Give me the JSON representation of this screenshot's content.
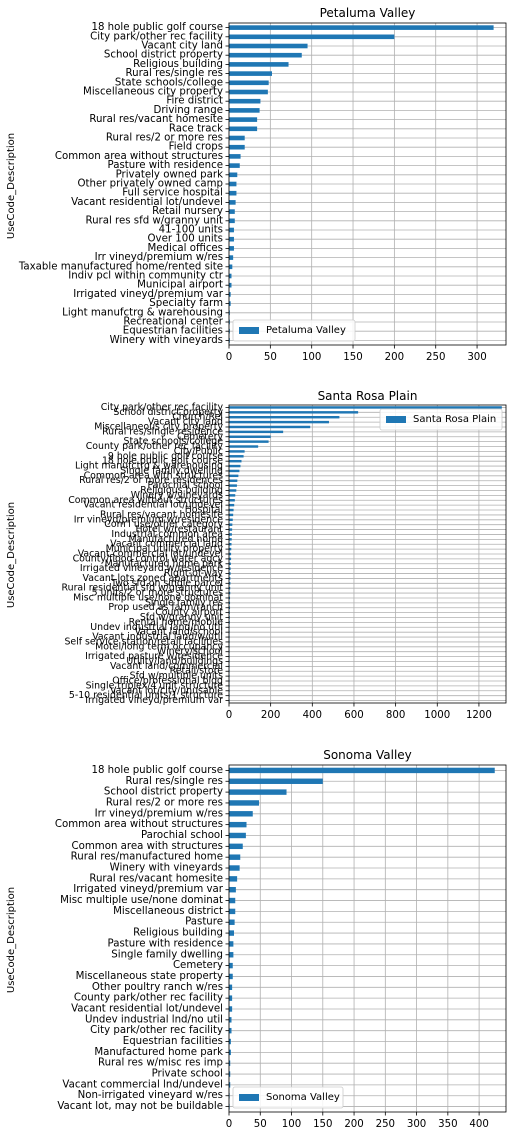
{
  "chart_data": [
    {
      "type": "bar",
      "orientation": "horizontal",
      "title": "Petaluma Valley",
      "ylabel": "UseCode_Description",
      "xlabel": "",
      "xlim": [
        0,
        335
      ],
      "xticks": [
        0,
        50,
        100,
        150,
        200,
        250,
        300
      ],
      "grid": true,
      "legend": "lower-left",
      "series": [
        {
          "name": "Petaluma Valley",
          "color": "#1f77b4"
        }
      ],
      "categories": [
        "18 hole public golf course",
        "City park/other rec facility",
        "Vacant city land",
        "School district property",
        "Religious building",
        "Rural res/single res",
        "State schools/college",
        "Miscellaneous city property",
        "Fire district",
        "Driving range",
        "Rural res/vacant homesite",
        "Race track",
        "Rural res/2 or more res",
        "Field crops",
        "Common area without structures",
        "Pasture with residence",
        "Privately owned park",
        "Other privately owned camp",
        "Full service hospital",
        "Vacant residential lot/undevel",
        "Retail nursery",
        "Rural res sfd w/granny unit",
        "41-100 units",
        "Over 100 units",
        "Medical offices",
        "Irr vineyd/premium w/res",
        "Taxable manufactured home/rented site",
        "Indiv pcl within community ctr",
        "Municipal airport",
        "Irrigated vineyd/premium var",
        "Specialty farm",
        "Light manufctrg & warehousing",
        "Recreational center",
        "Equestrian facilities",
        "Winery with vineyards"
      ],
      "values": [
        320,
        200,
        95,
        88,
        72,
        52,
        48,
        47,
        38,
        37,
        34,
        34,
        19,
        19,
        14,
        13,
        10,
        9,
        9,
        8,
        7,
        7,
        6,
        6,
        6,
        5,
        4,
        3,
        3,
        2,
        2,
        1,
        1,
        1,
        1
      ]
    },
    {
      "type": "bar",
      "orientation": "horizontal",
      "title": "Santa Rosa Plain",
      "ylabel": "UseCode_Description",
      "xlabel": "",
      "xlim": [
        0,
        1330
      ],
      "xticks": [
        0,
        200,
        400,
        600,
        800,
        1000,
        1200
      ],
      "grid": true,
      "legend": "upper-right",
      "series": [
        {
          "name": "Santa Rosa Plain",
          "color": "#1f77b4"
        }
      ],
      "categories": [
        "City park/other rec facility",
        "School district property",
        "Church/Rel",
        "Vacant city land",
        "Miscellaneous city property",
        "Rural res/single residence",
        "Cemetery",
        "State schools/college",
        "County park/other rec facility",
        "City/Public",
        "9 hole public golf course",
        "18 hole public golf course",
        "Light manufctrg & warehousing",
        "Single family dwelling",
        "Common area with structures",
        "Rural res/2 or more residences",
        "Parochial school",
        "Religious building",
        "Winery w/vineyards",
        "Common area without structures",
        "Vacant residential lot/undevel",
        "Hospital",
        "Rural res/vacant homesite",
        "Irr vineyd/premium w/residence",
        "Com'l use/other category",
        "Hotel w/restaurant",
        "Industrial common area",
        "Manufactured home",
        "Vacant commercial land",
        "Municipal utility property",
        "Vacant commercial lot/undevel",
        "County/flood control water agcy",
        "Manufactured home park",
        "Irrigated vineyard w/residence",
        "Right-of-way",
        "Vacant lots zoned apartments",
        "Two sfd on single parcel",
        "Rural residential sfd w/granny unit",
        "5 units/2 or more structures",
        "Misc multiple use/none dominat",
        "Single family res",
        "Prop used as farm/ranch",
        "County airport",
        "Sfd w/granny unit",
        "Rental home/mobile",
        "Undev industrial land/no util",
        "Vacant land/school",
        "Vacant industrial land/w/util",
        "Self service station/retail facilities",
        "Motel/long term occupancy",
        "Winery/school",
        "Irrigated pasture w/residence",
        "Utility/land/buildings",
        "Vacant land/commercial",
        "Retail/store",
        "Sfd w/multiple units",
        "Office/professional bldg",
        "Single triplex/4 unit structure",
        "Vacant lot/city/unusable",
        "5-10 residential units/1 structure",
        "Irrigated vineyd/premium var"
      ],
      "values": [
        1310,
        620,
        530,
        480,
        390,
        260,
        200,
        190,
        140,
        75,
        70,
        60,
        55,
        50,
        45,
        40,
        38,
        35,
        30,
        28,
        25,
        22,
        20,
        18,
        16,
        15,
        14,
        13,
        12,
        11,
        10,
        10,
        9,
        8,
        8,
        7,
        7,
        6,
        6,
        5,
        5,
        5,
        4,
        4,
        4,
        3,
        3,
        3,
        3,
        2,
        2,
        2,
        2,
        2,
        2,
        1,
        1,
        1,
        1,
        1,
        1
      ]
    },
    {
      "type": "bar",
      "orientation": "horizontal",
      "title": "Sonoma Valley",
      "ylabel": "UseCode_Description",
      "xlabel": "",
      "xlim": [
        0,
        443
      ],
      "xticks": [
        0,
        50,
        100,
        150,
        200,
        250,
        300,
        350,
        400
      ],
      "grid": true,
      "legend": "lower-left",
      "series": [
        {
          "name": "Sonoma Valley",
          "color": "#1f77b4"
        }
      ],
      "categories": [
        "18 hole public golf course",
        "Rural res/single res",
        "School district property",
        "Rural res/2 or more res",
        "Irr vineyd/premium w/res",
        "Common area without structures",
        "Parochial school",
        "Common area with structures",
        "Rural res/manufactured home",
        "Winery with vineyards",
        "Rural res/vacant homesite",
        "Irrigated vineyd/premium var",
        "Misc multiple use/none dominat",
        "Miscellaneous district",
        "Pasture",
        "Religious building",
        "Pasture with residence",
        "Single family dwelling",
        "Cemetery",
        "Miscellaneous state property",
        "Other poultry ranch w/res",
        "County park/other rec facility",
        "Vacant residential lot/undevel",
        "Undev industrial lnd/no util",
        "City park/other rec facility",
        "Equestrian facilities",
        "Manufactured home park",
        "Rural res w/misc res imp",
        "Private school",
        "Vacant commercial lnd/undevel",
        "Non-irrigated vineyard w/res",
        "Vacant lot, may not be buildable"
      ],
      "values": [
        425,
        150,
        92,
        48,
        38,
        28,
        27,
        22,
        18,
        17,
        13,
        11,
        10,
        10,
        9,
        8,
        7,
        7,
        6,
        6,
        5,
        5,
        5,
        4,
        4,
        3,
        3,
        2,
        2,
        2,
        1,
        1
      ]
    }
  ]
}
